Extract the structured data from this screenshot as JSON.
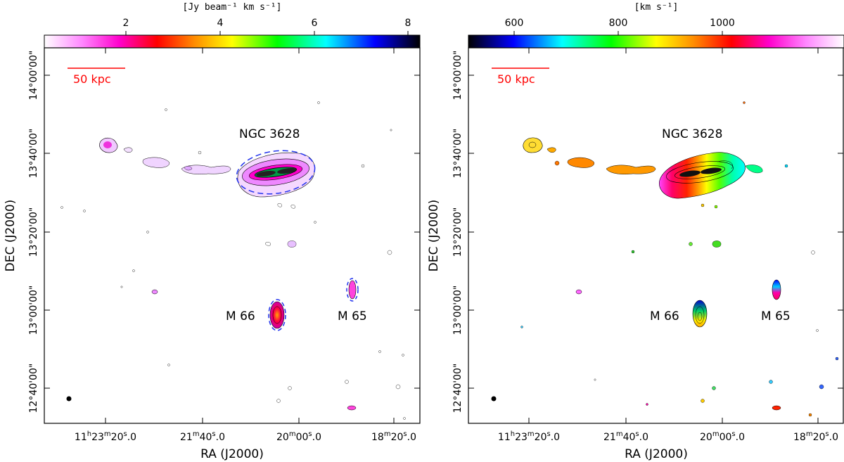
{
  "chart_data": [
    {
      "type": "contour-map",
      "panel": "left",
      "colorbar": {
        "label": "[Jy beam⁻¹ km s⁻¹]",
        "ticks": [
          "2",
          "4",
          "6",
          "8"
        ],
        "tick_values": [
          2,
          4,
          6,
          8
        ],
        "range": [
          0.3,
          8.3
        ],
        "colormap": [
          "#ffffff",
          "#ff66ff",
          "#ff00cc",
          "#ff0000",
          "#ff8c00",
          "#ffff00",
          "#00ff00",
          "#00ffff",
          "#0000ff",
          "#000000"
        ]
      },
      "xlabel": "RA (J2000)",
      "ylabel": "DEC (J2000)",
      "x_ticks": [
        "11h23m20.0s",
        "21m40.0s",
        "20m00.0s",
        "18m20.0s"
      ],
      "y_ticks": [
        "12°40'00\"",
        "13°00'00\"",
        "13°20'00\"",
        "13°40'00\"",
        "14°00'00\""
      ],
      "labels": [
        {
          "text": "NGC 3628",
          "ra": "11h20m",
          "dec": "13°45'"
        },
        {
          "text": "M 66",
          "ra": "11h20m",
          "dec": "12°59'"
        },
        {
          "text": "M 65",
          "ra": "11h19m",
          "dec": "12°59'"
        }
      ],
      "scale_bar": "50 kpc",
      "sources": [
        "NGC 3628",
        "M 66",
        "M 65"
      ]
    },
    {
      "type": "contour-map",
      "panel": "right",
      "colorbar": {
        "label": "[km s⁻¹]",
        "ticks": [
          "600",
          "800",
          "1000"
        ],
        "tick_values": [
          600,
          800,
          1000
        ],
        "range": [
          540,
          1080
        ],
        "colormap": [
          "#000000",
          "#0000ff",
          "#00ffff",
          "#00ff00",
          "#ffff00",
          "#ff8c00",
          "#ff0000",
          "#ff00cc",
          "#ff66ff",
          "#ffffff"
        ]
      },
      "xlabel": "RA (J2000)",
      "ylabel": "DEC (J2000)",
      "x_ticks": [
        "11h23m20.0s",
        "21m40.0s",
        "20m00.0s",
        "18m20.0s"
      ],
      "y_ticks": [
        "12°40'00\"",
        "13°00'00\"",
        "13°20'00\"",
        "13°40'00\"",
        "14°00'00\""
      ],
      "labels": [
        {
          "text": "NGC 3628",
          "ra": "11h20m",
          "dec": "13°45'"
        },
        {
          "text": "M 66",
          "ra": "11h20m",
          "dec": "12°59'"
        },
        {
          "text": "M 65",
          "ra": "11h19m",
          "dec": "12°59'"
        }
      ],
      "scale_bar": "50 kpc",
      "sources": [
        "NGC 3628",
        "M 66",
        "M 65"
      ]
    }
  ],
  "left": {
    "cb_label": "[Jy beam⁻¹ km s⁻¹]",
    "cb_ticks": [
      "2",
      "4",
      "6",
      "8"
    ],
    "xlabel": "RA (J2000)",
    "ylabel": "DEC (J2000)",
    "ngc": "NGC 3628",
    "m66": "M 66",
    "m65": "M 65",
    "scale": "50 kpc"
  },
  "right": {
    "cb_label": "[km s⁻¹]",
    "cb_ticks": [
      "600",
      "800",
      "1000"
    ],
    "xlabel": "RA (J2000)",
    "ylabel": "DEC (J2000)",
    "ngc": "NGC 3628",
    "m66": "M 66",
    "m65": "M 65",
    "scale": "50 kpc"
  },
  "xticks": {
    "t1_main": "11",
    "t1_h": "h",
    "t1_num": "23",
    "t1_m": "m",
    "t1_sec": "20",
    "t1_s": "s",
    "t1_frac": ".0",
    "t2_num": "21",
    "t2_m": "m",
    "t2_sec": "40",
    "t2_s": "s",
    "t2_frac": ".0",
    "t3_num": "20",
    "t3_m": "m",
    "t3_sec": "00",
    "t3_s": "s",
    "t3_frac": ".0",
    "t4_num": "18",
    "t4_m": "m",
    "t4_sec": "20",
    "t4_s": "s",
    "t4_frac": ".0"
  },
  "yticks": [
    "12°40'00\"",
    "13°00'00\"",
    "13°20'00\"",
    "13°40'00\"",
    "14°00'00\""
  ]
}
